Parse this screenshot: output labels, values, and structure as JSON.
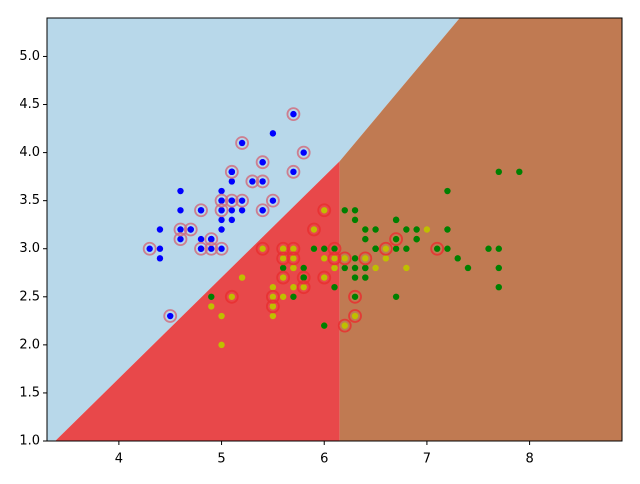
{
  "chart_data": {
    "type": "scatter",
    "xlim": [
      3.3,
      8.9
    ],
    "ylim": [
      1.0,
      5.4
    ],
    "xticks": [
      4,
      5,
      6,
      7,
      8
    ],
    "yticks": [
      {
        "value": 1,
        "label": "1.0"
      },
      {
        "value": 1.5,
        "label": "1.5"
      },
      {
        "value": 2,
        "label": "2.0"
      },
      {
        "value": 2.5,
        "label": "2.5"
      },
      {
        "value": 3,
        "label": "3.0"
      },
      {
        "value": 3.5,
        "label": "3.5"
      },
      {
        "value": 4,
        "label": "4.0"
      },
      {
        "value": 4.5,
        "label": "4.5"
      },
      {
        "value": 5,
        "label": "5.0"
      }
    ],
    "regions": [
      {
        "color": "#b8d8ea",
        "x": [
          3.3,
          3.38,
          6.15,
          7.32,
          3.3
        ],
        "y": [
          1.0,
          1.0,
          3.91,
          5.4,
          5.4
        ]
      },
      {
        "color": "#e8484a",
        "x": [
          3.38,
          6.15,
          6.15
        ],
        "y": [
          1.0,
          1.0,
          3.91
        ]
      },
      {
        "color": "#c07a52",
        "x": [
          6.15,
          8.9,
          8.9,
          7.32,
          6.15
        ],
        "y": [
          1.0,
          1.0,
          5.4,
          5.4,
          3.91
        ]
      }
    ],
    "series": [
      {
        "color": "#0000ff",
        "x": [
          5.1,
          4.9,
          4.7,
          4.6,
          5.0,
          5.4,
          4.6,
          5.0,
          4.4,
          4.9,
          5.4,
          4.8,
          4.8,
          4.3,
          5.8,
          5.7,
          5.4,
          5.1,
          5.7,
          5.1,
          5.4,
          5.1,
          4.6,
          5.1,
          4.8,
          5.0,
          5.0,
          5.2,
          5.2,
          4.7,
          4.8,
          5.4,
          5.2,
          5.5,
          4.9,
          5.0,
          5.5,
          4.9,
          4.4,
          5.1,
          5.0,
          4.5,
          4.4,
          5.0,
          5.1,
          4.8,
          5.1,
          4.6,
          5.3,
          5.0
        ],
        "y": [
          3.5,
          3.0,
          3.2,
          3.1,
          3.6,
          3.9,
          3.4,
          3.4,
          2.9,
          3.1,
          3.7,
          3.4,
          3.0,
          3.0,
          4.0,
          4.4,
          3.9,
          3.5,
          3.8,
          3.8,
          3.4,
          3.7,
          3.6,
          3.3,
          3.4,
          3.0,
          3.4,
          3.5,
          3.4,
          3.2,
          3.1,
          3.4,
          4.1,
          4.2,
          3.1,
          3.2,
          3.5,
          3.1,
          3.0,
          3.4,
          3.5,
          2.3,
          3.2,
          3.5,
          3.8,
          3.0,
          3.8,
          3.2,
          3.7,
          3.3
        ]
      },
      {
        "color": "#bfbf00",
        "x": [
          7.0,
          6.4,
          6.9,
          5.5,
          6.5,
          5.7,
          6.3,
          4.9,
          6.6,
          5.2,
          5.0,
          5.9,
          6.0,
          6.1,
          5.6,
          6.7,
          5.6,
          5.8,
          6.2,
          5.6,
          5.9,
          6.1,
          6.3,
          6.1,
          6.4,
          6.6,
          6.8,
          6.7,
          6.0,
          5.7,
          5.5,
          5.5,
          5.8,
          6.0,
          5.4,
          6.0,
          6.7,
          6.3,
          5.6,
          5.5,
          5.5,
          6.1,
          5.8,
          5.0,
          5.6,
          5.7,
          5.7,
          6.2,
          5.1,
          5.7
        ],
        "y": [
          3.2,
          3.2,
          3.1,
          2.3,
          2.8,
          2.8,
          3.3,
          2.4,
          2.9,
          2.7,
          2.0,
          3.0,
          2.2,
          2.9,
          2.9,
          3.1,
          3.0,
          2.7,
          2.2,
          2.5,
          3.2,
          2.8,
          2.5,
          2.8,
          2.9,
          3.0,
          2.8,
          3.0,
          2.9,
          2.6,
          2.4,
          2.4,
          2.7,
          2.7,
          3.0,
          3.4,
          3.1,
          2.3,
          3.0,
          2.5,
          2.6,
          3.0,
          2.6,
          2.3,
          2.7,
          3.0,
          2.9,
          2.9,
          2.5,
          2.8
        ]
      },
      {
        "color": "#008000",
        "x": [
          6.3,
          5.8,
          7.1,
          6.3,
          6.5,
          7.6,
          4.9,
          7.3,
          6.7,
          7.2,
          6.5,
          6.4,
          6.8,
          5.7,
          5.8,
          6.4,
          6.5,
          7.7,
          7.7,
          6.0,
          6.9,
          5.6,
          7.7,
          6.3,
          6.7,
          7.2,
          6.2,
          6.1,
          6.4,
          7.2,
          7.4,
          7.9,
          6.4,
          6.3,
          6.1,
          7.7,
          6.3,
          6.4,
          6.0,
          6.9,
          6.7,
          6.9,
          5.8,
          6.8,
          6.7,
          6.7,
          6.3,
          6.5,
          6.2,
          5.9
        ],
        "y": [
          3.3,
          2.7,
          3.0,
          2.9,
          3.0,
          3.0,
          2.5,
          2.9,
          2.5,
          3.6,
          3.2,
          2.7,
          3.0,
          2.5,
          2.8,
          3.2,
          3.0,
          3.8,
          2.6,
          2.2,
          3.2,
          2.8,
          2.8,
          2.7,
          3.3,
          3.2,
          2.8,
          3.0,
          2.8,
          3.0,
          2.8,
          3.8,
          2.8,
          2.8,
          2.6,
          3.0,
          3.4,
          3.1,
          3.0,
          3.1,
          3.1,
          3.1,
          2.7,
          3.2,
          3.3,
          3.0,
          2.5,
          3.0,
          3.4,
          3.0
        ]
      }
    ],
    "support_vectors": [
      {
        "color": "#d07080",
        "x": [
          4.3,
          4.5,
          4.6,
          4.6,
          4.7,
          4.8,
          4.8,
          4.9,
          4.9,
          5.0,
          5.0,
          5.0,
          5.1,
          5.1,
          5.2,
          5.2,
          5.3,
          5.4,
          5.4,
          5.4,
          5.5,
          5.7,
          5.7,
          5.8
        ],
        "y": [
          3.0,
          2.3,
          3.1,
          3.2,
          3.2,
          3.0,
          3.4,
          3.0,
          3.1,
          3.0,
          3.4,
          3.5,
          3.5,
          3.8,
          3.5,
          4.1,
          3.7,
          3.4,
          3.7,
          3.9,
          3.5,
          3.8,
          4.4,
          4.0
        ]
      },
      {
        "color": "#e83030",
        "x": [
          5.1,
          5.4,
          5.5,
          5.5,
          5.6,
          5.6,
          5.6,
          5.7,
          5.7,
          5.8,
          5.8,
          5.9,
          6.0,
          6.0,
          6.1,
          6.1,
          6.2,
          6.2,
          6.3,
          6.3,
          6.4,
          6.6,
          6.7,
          7.1
        ],
        "y": [
          2.5,
          3.0,
          2.4,
          2.5,
          2.7,
          2.9,
          3.0,
          2.9,
          3.0,
          2.6,
          2.7,
          3.2,
          2.7,
          3.4,
          2.9,
          3.0,
          2.2,
          2.9,
          2.3,
          2.5,
          2.9,
          3.0,
          3.1,
          3.0
        ]
      }
    ]
  }
}
